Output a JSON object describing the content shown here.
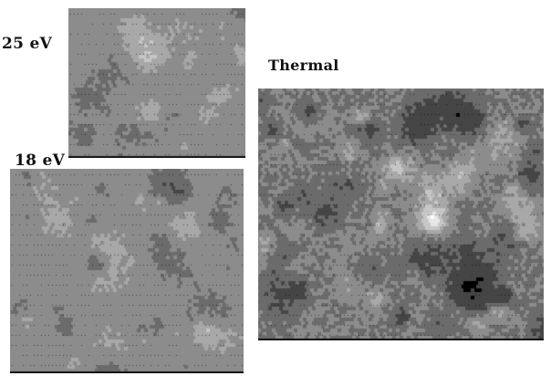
{
  "labels": {
    "panel_25": "25 eV",
    "panel_18": "18 eV",
    "panel_thermal": "Thermal"
  },
  "palette": [
    "#000000",
    "#454545",
    "#6b6b6b",
    "#8c8c8c",
    "#a8a8a8",
    "#c6c6c6",
    "#e6e6e6",
    "#ffffff"
  ],
  "panels": {
    "panel_25": {
      "tone": "#8a8a8a",
      "contrast": 0.55
    },
    "panel_18": {
      "tone": "#8e8e8e",
      "contrast": 0.6
    },
    "panel_thermal": {
      "tone": "#7a7a7a",
      "contrast": 1.0
    }
  }
}
